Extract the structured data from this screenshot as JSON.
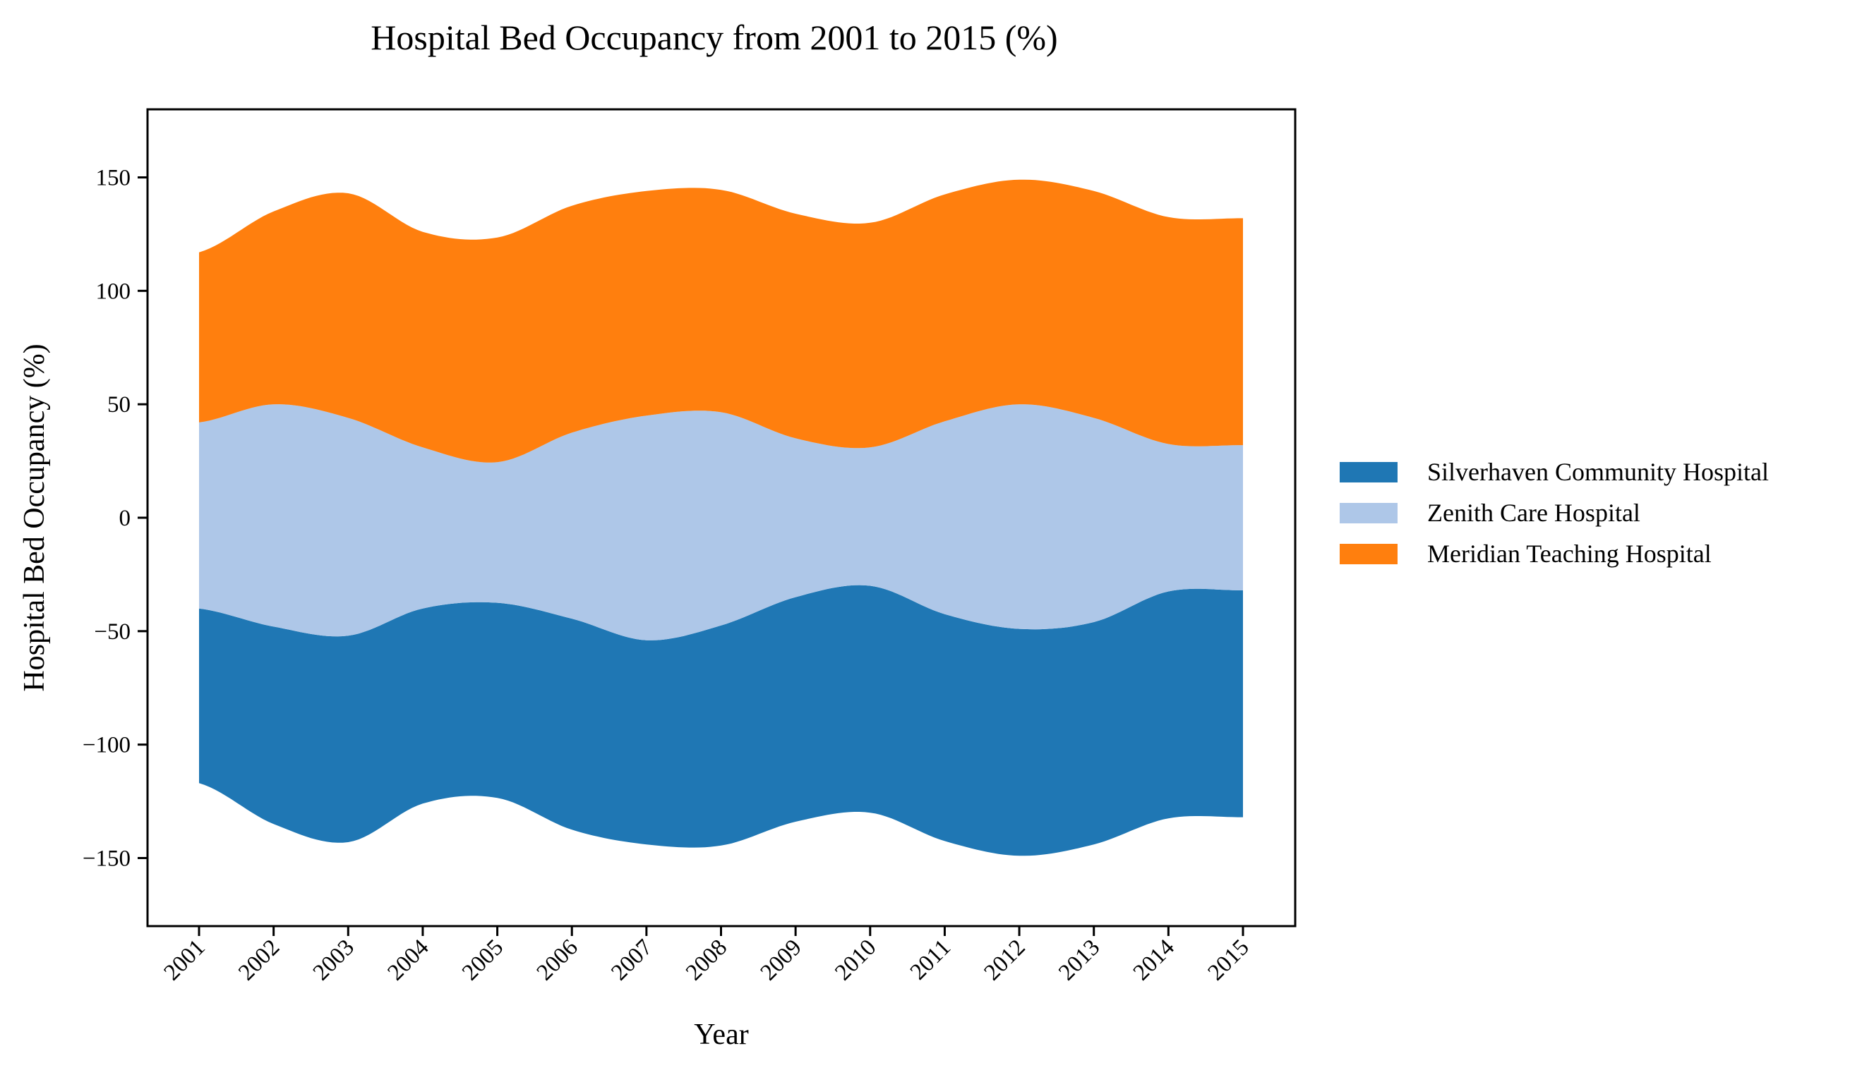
{
  "chart_data": {
    "type": "area",
    "subtype": "streamgraph (symmetric baseline)",
    "title": "Hospital Bed Occupancy from 2001 to 2015 (%)",
    "xlabel": "Year",
    "ylabel": "Hospital Bed Occupancy (%)",
    "ylim": [
      -180,
      180
    ],
    "yticks": [
      -150,
      -100,
      -50,
      0,
      50,
      100,
      150
    ],
    "ytick_labels": [
      "−150",
      "−100",
      "−50",
      "0",
      "50",
      "100",
      "150"
    ],
    "categories": [
      "2001",
      "2002",
      "2003",
      "2004",
      "2005",
      "2006",
      "2007",
      "2008",
      "2009",
      "2010",
      "2011",
      "2012",
      "2013",
      "2014",
      "2015"
    ],
    "grid": false,
    "legend_position": "right, outside plot",
    "series": [
      {
        "name": "Silverhaven Community Hospital",
        "color": "#1f77b4",
        "values": [
          77,
          87,
          91,
          86,
          86,
          93,
          90,
          97,
          99,
          100,
          100,
          100,
          98,
          100,
          100
        ]
      },
      {
        "name": "Zenith Care Hospital",
        "color": "#aec7e8",
        "values": [
          82,
          98,
          96,
          71,
          62,
          82,
          99,
          94,
          70,
          61,
          85,
          99,
          90,
          65,
          64
        ]
      },
      {
        "name": "Meridian Teaching Hospital",
        "color": "#ff7f0e",
        "values": [
          75,
          85,
          99,
          95,
          99,
          100,
          99,
          98,
          99,
          99,
          100,
          99,
          100,
          100,
          100
        ]
      }
    ]
  }
}
